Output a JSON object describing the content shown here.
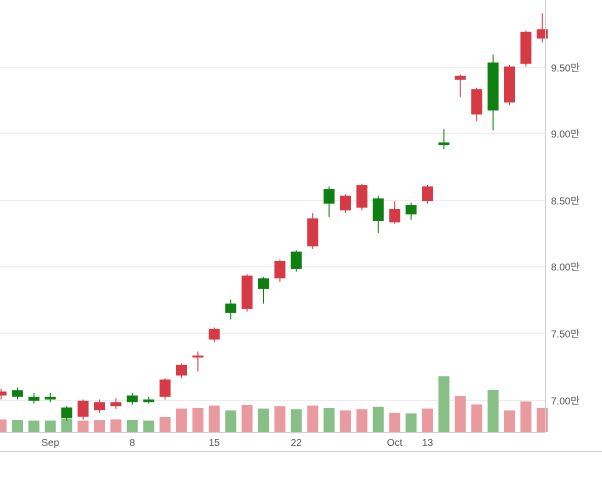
{
  "chart_data": {
    "type": "candlestick",
    "title": "",
    "y_unit": "만",
    "ylim": [
      6.75,
      9.92
    ],
    "y_ticks": [
      {
        "value": 7.0,
        "label": "7.00만"
      },
      {
        "value": 7.5,
        "label": "7.50만"
      },
      {
        "value": 8.0,
        "label": "8.00만"
      },
      {
        "value": 8.5,
        "label": "8.50만"
      },
      {
        "value": 9.0,
        "label": "9.00만"
      },
      {
        "value": 9.5,
        "label": "9.50만"
      }
    ],
    "x_ticks": [
      {
        "index": 2,
        "label": "Sep"
      },
      {
        "index": 7,
        "label": "8"
      },
      {
        "index": 12,
        "label": "15"
      },
      {
        "index": 17,
        "label": "22"
      },
      {
        "index": 23,
        "label": "Oct"
      },
      {
        "index": 25,
        "label": "13"
      }
    ],
    "grid": true,
    "candles": [
      {
        "i": -1,
        "open": 7.06,
        "close": 7.03,
        "high": 7.08,
        "low": 7.0
      },
      {
        "i": 0,
        "open": 7.02,
        "close": 7.07,
        "high": 7.09,
        "low": 7.0
      },
      {
        "i": 1,
        "open": 6.99,
        "close": 7.02,
        "high": 7.05,
        "low": 6.97
      },
      {
        "i": 2,
        "open": 7.0,
        "close": 7.02,
        "high": 7.05,
        "low": 6.98
      },
      {
        "i": 3,
        "open": 6.86,
        "close": 6.94,
        "high": 6.95,
        "low": 6.84
      },
      {
        "i": 4,
        "open": 6.99,
        "close": 6.87,
        "high": 7.0,
        "low": 6.85
      },
      {
        "i": 5,
        "open": 6.98,
        "close": 6.92,
        "high": 7.0,
        "low": 6.9
      },
      {
        "i": 6,
        "open": 6.98,
        "close": 6.95,
        "high": 7.01,
        "low": 6.93
      },
      {
        "i": 7,
        "open": 6.98,
        "close": 7.03,
        "high": 7.05,
        "low": 6.96
      },
      {
        "i": 8,
        "open": 6.98,
        "close": 7.0,
        "high": 7.02,
        "low": 6.97
      },
      {
        "i": 9,
        "open": 7.15,
        "close": 7.02,
        "high": 7.16,
        "low": 7.0
      },
      {
        "i": 10,
        "open": 7.26,
        "close": 7.18,
        "high": 7.27,
        "low": 7.16
      },
      {
        "i": 11,
        "open": 7.33,
        "close": 7.32,
        "high": 7.36,
        "low": 7.21
      },
      {
        "i": 12,
        "open": 7.53,
        "close": 7.45,
        "high": 7.54,
        "low": 7.43
      },
      {
        "i": 13,
        "open": 7.65,
        "close": 7.72,
        "high": 7.75,
        "low": 7.6
      },
      {
        "i": 14,
        "open": 7.93,
        "close": 7.68,
        "high": 7.94,
        "low": 7.66
      },
      {
        "i": 15,
        "open": 7.83,
        "close": 7.91,
        "high": 7.92,
        "low": 7.72
      },
      {
        "i": 16,
        "open": 8.04,
        "close": 7.91,
        "high": 8.05,
        "low": 7.88
      },
      {
        "i": 17,
        "open": 7.98,
        "close": 8.11,
        "high": 8.12,
        "low": 7.96
      },
      {
        "i": 18,
        "open": 8.36,
        "close": 8.15,
        "high": 8.4,
        "low": 8.13
      },
      {
        "i": 19,
        "open": 8.47,
        "close": 8.58,
        "high": 8.6,
        "low": 8.37
      },
      {
        "i": 20,
        "open": 8.53,
        "close": 8.42,
        "high": 8.54,
        "low": 8.4
      },
      {
        "i": 21,
        "open": 8.61,
        "close": 8.44,
        "high": 8.62,
        "low": 8.42
      },
      {
        "i": 22,
        "open": 8.34,
        "close": 8.51,
        "high": 8.53,
        "low": 8.25
      },
      {
        "i": 23,
        "open": 8.43,
        "close": 8.33,
        "high": 8.49,
        "low": 8.32
      },
      {
        "i": 24,
        "open": 8.39,
        "close": 8.46,
        "high": 8.48,
        "low": 8.35
      },
      {
        "i": 25,
        "open": 8.6,
        "close": 8.49,
        "high": 8.61,
        "low": 8.47
      },
      {
        "i": 26,
        "open": 8.91,
        "close": 8.93,
        "high": 9.03,
        "low": 8.88
      },
      {
        "i": 27,
        "open": 9.43,
        "close": 9.4,
        "high": 9.44,
        "low": 9.27
      },
      {
        "i": 28,
        "open": 9.33,
        "close": 9.14,
        "high": 9.34,
        "low": 9.09
      },
      {
        "i": 29,
        "open": 9.17,
        "close": 9.53,
        "high": 9.59,
        "low": 9.02
      },
      {
        "i": 30,
        "open": 9.5,
        "close": 9.23,
        "high": 9.51,
        "low": 9.21
      },
      {
        "i": 31,
        "open": 9.76,
        "close": 9.52,
        "high": 9.77,
        "low": 9.5
      },
      {
        "i": 32,
        "open": 9.78,
        "close": 9.71,
        "high": 9.9,
        "low": 9.68
      }
    ],
    "volume": [
      0.21,
      0.2,
      0.19,
      0.19,
      0.22,
      0.19,
      0.2,
      0.21,
      0.2,
      0.19,
      0.25,
      0.39,
      0.4,
      0.44,
      0.36,
      0.45,
      0.39,
      0.43,
      0.38,
      0.44,
      0.4,
      0.36,
      0.38,
      0.42,
      0.32,
      0.31,
      0.39,
      0.93,
      0.6,
      0.46,
      0.7,
      0.36,
      0.51,
      0.4
    ],
    "colors": {
      "up": "#0f7f12",
      "down": "#d63a44",
      "vol_up": "#86c086",
      "vol_down": "#e99a9f",
      "grid": "#ececec",
      "axis": "#cfcfcf"
    }
  }
}
